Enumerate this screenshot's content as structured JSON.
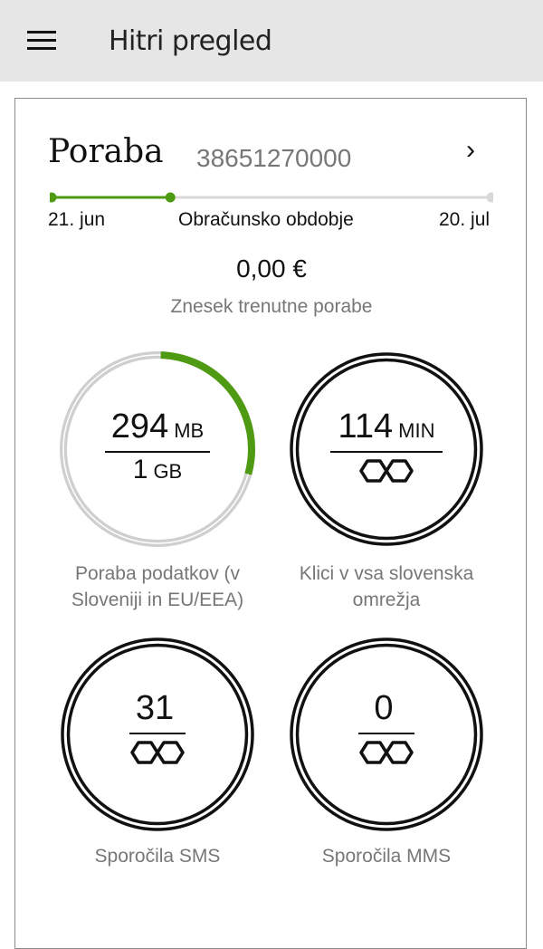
{
  "header": {
    "title": "Hitri pregled",
    "menu_icon": "hamburger-menu-icon"
  },
  "card": {
    "title": "Poraba",
    "phone_number": "38651270000",
    "period": {
      "start": "21. jun",
      "label": "Obračunsko obdobje",
      "end": "20. jul",
      "elapsed_fraction": 0.27
    },
    "amount": "0,00 €",
    "amount_label": "Znesek trenutne porabe",
    "gauges": [
      {
        "value": "294",
        "unit": "MB",
        "limit": "1",
        "limit_unit": "GB",
        "used_fraction": 0.287,
        "caption": [
          "Poraba podatkov (v",
          "Sloveniji in EU/EEA)"
        ]
      },
      {
        "value": "114",
        "unit": "MIN",
        "limit_icon": "infinity-icon",
        "caption": [
          "Klici v vsa slovenska",
          "omrežja"
        ]
      },
      {
        "value": "31",
        "unit": "",
        "limit_icon": "infinity-icon",
        "caption": [
          "Sporočila SMS"
        ]
      },
      {
        "value": "0",
        "unit": "",
        "limit_icon": "infinity-icon",
        "caption": [
          "Sporočila MMS"
        ]
      }
    ]
  },
  "colors": {
    "accent": "#4e9a12",
    "track": "#cccccc",
    "header_bg": "#e6e6e6"
  }
}
